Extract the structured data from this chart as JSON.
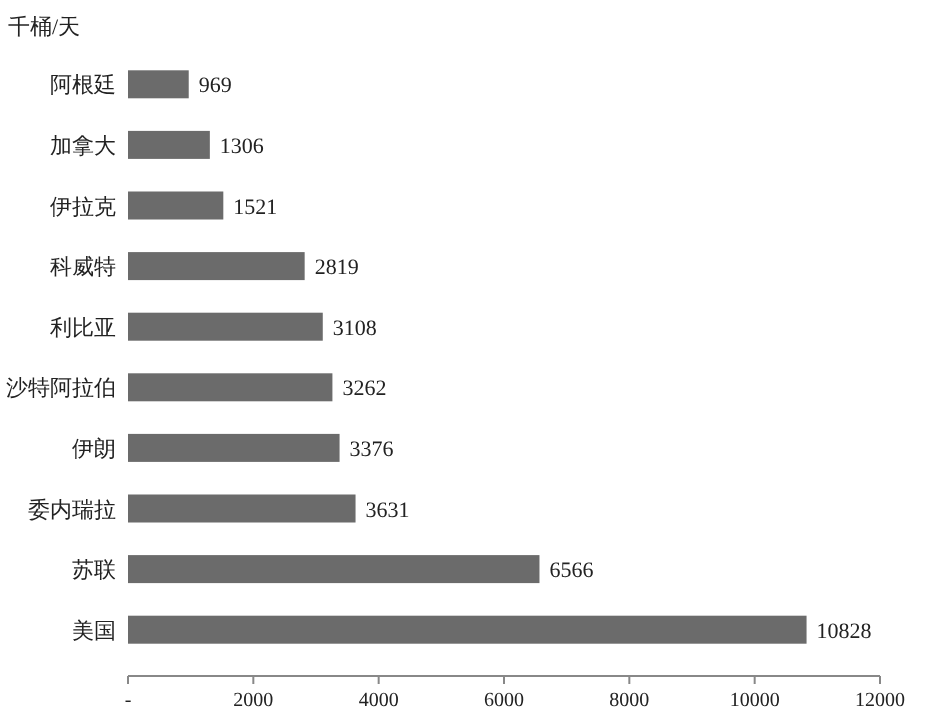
{
  "chart_data": {
    "type": "bar",
    "orientation": "horizontal",
    "ylabel": "千桶/天",
    "categories": [
      "阿根廷",
      "加拿大",
      "伊拉克",
      "科威特",
      "利比亚",
      "沙特阿拉伯",
      "伊朗",
      "委内瑞拉",
      "苏联",
      "美国"
    ],
    "values": [
      969,
      1306,
      1521,
      2819,
      3108,
      3262,
      3376,
      3631,
      6566,
      10828
    ],
    "color": "#6b6b6b",
    "data_labels": true,
    "grid": false,
    "xlim": [
      0,
      12000
    ],
    "xticks": [
      {
        "value": 0,
        "label": "-"
      },
      2000,
      4000,
      6000,
      8000,
      10000,
      12000
    ]
  }
}
